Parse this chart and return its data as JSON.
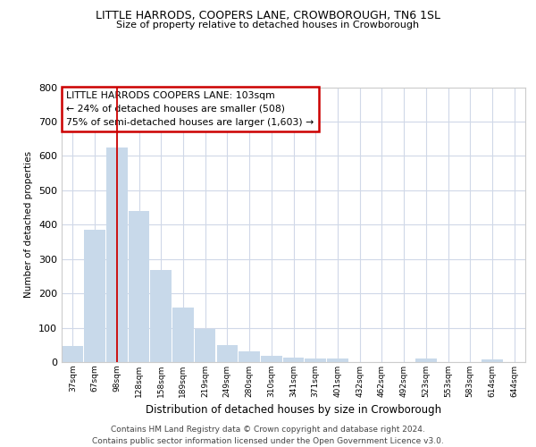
{
  "title1": "LITTLE HARRODS, COOPERS LANE, CROWBOROUGH, TN6 1SL",
  "title2": "Size of property relative to detached houses in Crowborough",
  "xlabel": "Distribution of detached houses by size in Crowborough",
  "ylabel": "Number of detached properties",
  "categories": [
    "37sqm",
    "67sqm",
    "98sqm",
    "128sqm",
    "158sqm",
    "189sqm",
    "219sqm",
    "249sqm",
    "280sqm",
    "310sqm",
    "341sqm",
    "371sqm",
    "401sqm",
    "432sqm",
    "462sqm",
    "492sqm",
    "523sqm",
    "553sqm",
    "583sqm",
    "614sqm",
    "644sqm"
  ],
  "values": [
    47,
    385,
    625,
    440,
    268,
    158,
    97,
    50,
    30,
    17,
    12,
    10,
    10,
    0,
    0,
    0,
    10,
    0,
    0,
    8,
    0
  ],
  "bar_color": "#c8d9ea",
  "bar_edgecolor": "#c8d9ea",
  "vline_x_index": 2,
  "vline_color": "#cc0000",
  "annotation_line1": "LITTLE HARRODS COOPERS LANE: 103sqm",
  "annotation_line2": "← 24% of detached houses are smaller (508)",
  "annotation_line3": "75% of semi-detached houses are larger (1,603) →",
  "annotation_box_facecolor": "#ffffff",
  "annotation_box_edgecolor": "#cc0000",
  "ylim": [
    0,
    800
  ],
  "yticks": [
    0,
    100,
    200,
    300,
    400,
    500,
    600,
    700,
    800
  ],
  "footer_line1": "Contains HM Land Registry data © Crown copyright and database right 2024.",
  "footer_line2": "Contains public sector information licensed under the Open Government Licence v3.0.",
  "bg_color": "#ffffff",
  "plot_bg_color": "#ffffff",
  "grid_color": "#d0d8e8",
  "spine_color": "#cccccc"
}
